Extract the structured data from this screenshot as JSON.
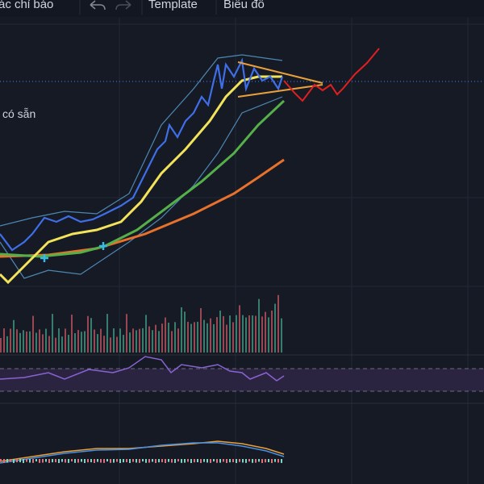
{
  "toolbar": {
    "indicators": "ác chỉ báo",
    "template": "Template",
    "chart": "Biểu đồ"
  },
  "sidebar": {
    "available": "có sẵn"
  }
}
